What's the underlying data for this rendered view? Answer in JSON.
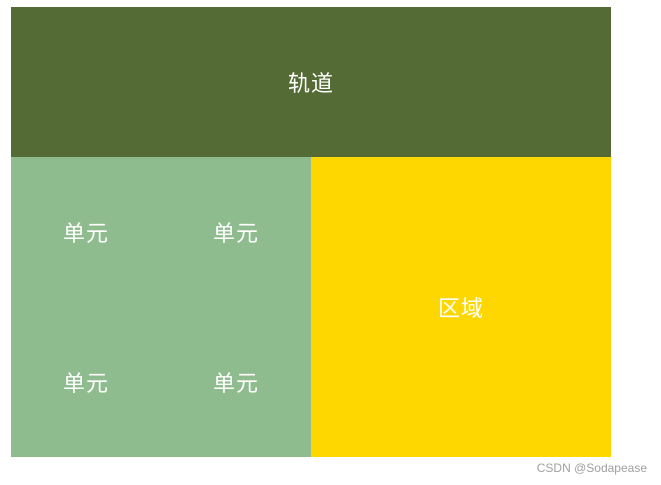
{
  "diagram": {
    "track": {
      "label": "轨道",
      "color": "#556b35"
    },
    "units": [
      {
        "label": "单元"
      },
      {
        "label": "单元"
      },
      {
        "label": "单元"
      },
      {
        "label": "单元"
      }
    ],
    "unit_color": "#8fbc8f",
    "area": {
      "label": "区域",
      "color": "#ffd700"
    }
  },
  "watermark": "CSDN @Sodapease"
}
